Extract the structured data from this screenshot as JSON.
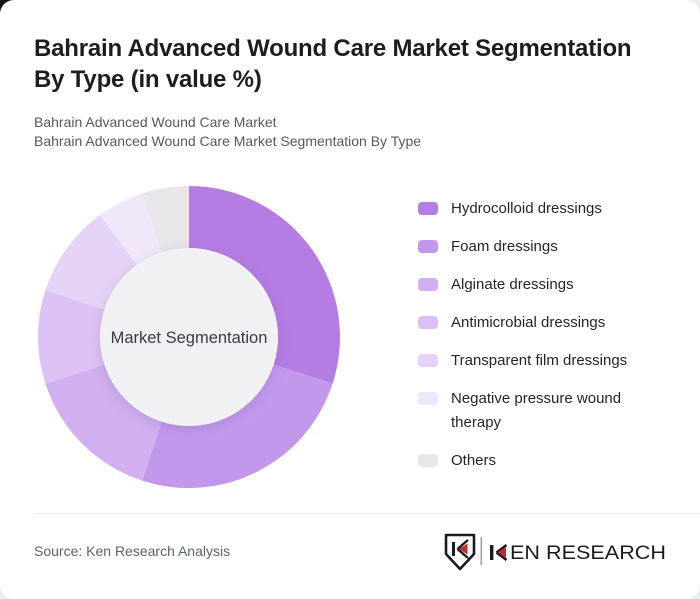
{
  "header": {
    "title_lines": [
      "Bahrain Advanced Wound Care Market Segmentation",
      "By Type (in value %)"
    ],
    "subtitle_lines": [
      "Bahrain Advanced Wound Care Market",
      "Bahrain Advanced Wound Care Market Segmentation By Type"
    ]
  },
  "chart_data": {
    "type": "pie",
    "variant": "donut",
    "title": "Bahrain Advanced Wound Care Market Segmentation By Type (in value %)",
    "center_label": "Market Segmentation",
    "unit": "%",
    "legend_position": "right",
    "start_angle_deg": 0,
    "categories": [
      "Hydrocolloid dressings",
      "Foam dressings",
      "Alginate dressings",
      "Antimicrobial dressings",
      "Transparent film dressings",
      "Negative pressure wound therapy",
      "Others"
    ],
    "values": [
      30,
      25,
      15,
      10,
      10,
      5,
      5
    ],
    "colors": [
      "#b57ce4",
      "#c298ec",
      "#d1aff0",
      "#dcc2f4",
      "#e5d3f7",
      "#f1e7fb",
      "#e8e6e9"
    ],
    "inner_circle_color": "#f1f0f2",
    "center_label_color": "#3a3c41"
  },
  "footer": {
    "source": "Source: Ken Research Analysis",
    "logo": {
      "brand": "KEN RESEARCH",
      "wordmark_rest": "EN RESEARCH",
      "accent_color": "#c22a31",
      "text_color": "#1a1b1d"
    }
  }
}
